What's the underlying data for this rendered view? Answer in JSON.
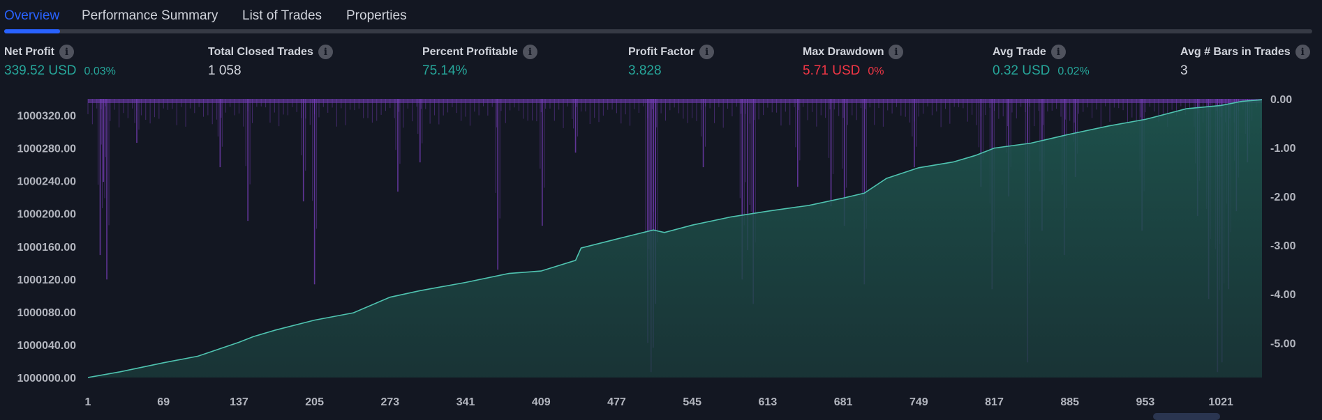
{
  "tabs": [
    "Overview",
    "Performance Summary",
    "List of Trades",
    "Properties"
  ],
  "active_tab": "Overview",
  "metrics": [
    {
      "title": "Net Profit",
      "value": "339.52 USD",
      "pct": "0.03%",
      "tone": "pos"
    },
    {
      "title": "Total Closed Trades",
      "value": "1 058",
      "pct": "",
      "tone": "neutral"
    },
    {
      "title": "Percent Profitable",
      "value": "75.14%",
      "pct": "",
      "tone": "pos"
    },
    {
      "title": "Profit Factor",
      "value": "3.828",
      "pct": "",
      "tone": "pos"
    },
    {
      "title": "Max Drawdown",
      "value": "5.71 USD",
      "pct": "0%",
      "tone": "neg"
    },
    {
      "title": "Avg Trade",
      "value": "0.32 USD",
      "pct": "0.02%",
      "tone": "pos"
    },
    {
      "title": "Avg # Bars in Trades",
      "value": "3",
      "pct": "",
      "tone": "neutral"
    }
  ],
  "info_icon_glyph": "i",
  "colors": {
    "background": "#131722",
    "accent": "#2962ff",
    "equity_line": "#4fc3b0",
    "drawdown_bar": "#7a3fbf",
    "positive": "#26a69a",
    "negative": "#f23645"
  },
  "chart_data": {
    "type": "area",
    "x_ticks": [
      "1",
      "69",
      "137",
      "205",
      "273",
      "341",
      "409",
      "477",
      "545",
      "613",
      "681",
      "749",
      "817",
      "885",
      "953",
      "1021"
    ],
    "xlim": [
      1,
      1058
    ],
    "left_axis": {
      "ticks": [
        "1000000.00",
        "1000040.00",
        "1000080.00",
        "1000120.00",
        "1000160.00",
        "1000200.00",
        "1000240.00",
        "1000280.00",
        "1000320.00"
      ],
      "ylim": [
        1000000,
        1000340
      ]
    },
    "right_axis": {
      "ticks": [
        "0.00",
        "-1.00",
        "-2.00",
        "-3.00",
        "-4.00",
        "-5.00"
      ],
      "ylim": [
        -5.71,
        0
      ]
    },
    "series": [
      {
        "kind": "equity",
        "points": [
          [
            1,
            1000000
          ],
          [
            30,
            1000007
          ],
          [
            69,
            1000018
          ],
          [
            100,
            1000026
          ],
          [
            137,
            1000043
          ],
          [
            150,
            1000050
          ],
          [
            170,
            1000058
          ],
          [
            205,
            1000070
          ],
          [
            240,
            1000079
          ],
          [
            273,
            1000098
          ],
          [
            300,
            1000106
          ],
          [
            341,
            1000116
          ],
          [
            380,
            1000127
          ],
          [
            409,
            1000130
          ],
          [
            440,
            1000143
          ],
          [
            445,
            1000158
          ],
          [
            477,
            1000169
          ],
          [
            510,
            1000180
          ],
          [
            520,
            1000177
          ],
          [
            545,
            1000186
          ],
          [
            580,
            1000196
          ],
          [
            613,
            1000203
          ],
          [
            650,
            1000210
          ],
          [
            681,
            1000219
          ],
          [
            700,
            1000225
          ],
          [
            720,
            1000243
          ],
          [
            749,
            1000256
          ],
          [
            780,
            1000263
          ],
          [
            800,
            1000271
          ],
          [
            817,
            1000280
          ],
          [
            850,
            1000286
          ],
          [
            885,
            1000297
          ],
          [
            920,
            1000307
          ],
          [
            953,
            1000315
          ],
          [
            990,
            1000328
          ],
          [
            1021,
            1000332
          ],
          [
            1040,
            1000337
          ],
          [
            1058,
            1000339
          ]
        ]
      },
      {
        "kind": "drawdown",
        "spikes": [
          [
            12,
            -3.2
          ],
          [
            15,
            -1.7
          ],
          [
            18,
            -3.7
          ],
          [
            45,
            -0.9
          ],
          [
            120,
            -1.4
          ],
          [
            145,
            -2.5
          ],
          [
            195,
            -2.1
          ],
          [
            205,
            -3.8
          ],
          [
            280,
            -1.9
          ],
          [
            300,
            -1.3
          ],
          [
            370,
            -3.5
          ],
          [
            410,
            -2.6
          ],
          [
            440,
            -1.1
          ],
          [
            505,
            -5.0
          ],
          [
            508,
            -5.6
          ],
          [
            510,
            -5.1
          ],
          [
            512,
            -4.2
          ],
          [
            555,
            -1.4
          ],
          [
            590,
            -3.7
          ],
          [
            595,
            -3.1
          ],
          [
            600,
            -4.2
          ],
          [
            640,
            -1.8
          ],
          [
            670,
            -2.2
          ],
          [
            682,
            -2.6
          ],
          [
            700,
            -3.8
          ],
          [
            745,
            -1.4
          ],
          [
            805,
            -1.8
          ],
          [
            815,
            -3.9
          ],
          [
            830,
            -2.0
          ],
          [
            847,
            -5.4
          ],
          [
            860,
            -2.7
          ],
          [
            880,
            -3.2
          ],
          [
            890,
            -1.6
          ],
          [
            950,
            -2.7
          ],
          [
            1000,
            -2.4
          ],
          [
            1010,
            -4.1
          ],
          [
            1018,
            -5.6
          ],
          [
            1022,
            -5.4
          ],
          [
            1028,
            -3.9
          ],
          [
            1035,
            -2.3
          ],
          [
            1045,
            -1.3
          ]
        ]
      }
    ]
  }
}
